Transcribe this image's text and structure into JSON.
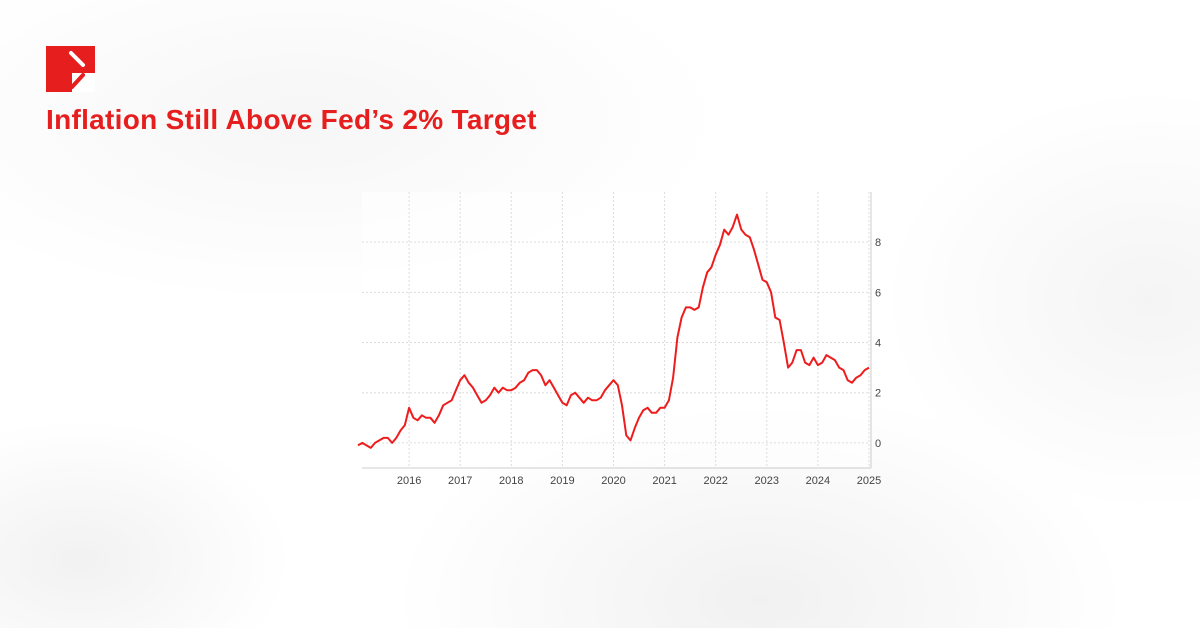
{
  "header": {
    "title": "Inflation Still Above Fed’s 2% Target",
    "logo_icon": "brand-logo-icon"
  },
  "colors": {
    "accent": "#e61e1e",
    "line": "#ee1c1c",
    "grid": "#dddddd"
  },
  "chart_data": {
    "type": "line",
    "title": "",
    "xlabel": "",
    "ylabel": "",
    "xlim": [
      2015,
      2025
    ],
    "ylim": [
      -1,
      10
    ],
    "x_ticks": [
      "2016",
      "2017",
      "2018",
      "2019",
      "2020",
      "2021",
      "2022",
      "2023",
      "2024",
      "2025"
    ],
    "y_ticks": [
      "0",
      "2",
      "4",
      "6",
      "8"
    ],
    "y_axis_side": "right",
    "grid": true,
    "x_start": "2015-01",
    "x_step": "monthly",
    "series": [
      {
        "values": [
          -0.1,
          0.0,
          -0.1,
          -0.2,
          0.0,
          0.1,
          0.2,
          0.2,
          0.0,
          0.2,
          0.5,
          0.7,
          1.4,
          1.0,
          0.9,
          1.1,
          1.0,
          1.0,
          0.8,
          1.1,
          1.5,
          1.6,
          1.7,
          2.1,
          2.5,
          2.7,
          2.4,
          2.2,
          1.9,
          1.6,
          1.7,
          1.9,
          2.2,
          2.0,
          2.2,
          2.1,
          2.1,
          2.2,
          2.4,
          2.5,
          2.8,
          2.9,
          2.9,
          2.7,
          2.3,
          2.5,
          2.2,
          1.9,
          1.6,
          1.5,
          1.9,
          2.0,
          1.8,
          1.6,
          1.8,
          1.7,
          1.7,
          1.8,
          2.1,
          2.3,
          2.5,
          2.3,
          1.5,
          0.3,
          0.1,
          0.6,
          1.0,
          1.3,
          1.4,
          1.2,
          1.2,
          1.4,
          1.4,
          1.7,
          2.6,
          4.2,
          5.0,
          5.4,
          5.4,
          5.3,
          5.4,
          6.2,
          6.8,
          7.0,
          7.5,
          7.9,
          8.5,
          8.3,
          8.6,
          9.1,
          8.5,
          8.3,
          8.2,
          7.7,
          7.1,
          6.5,
          6.4,
          6.0,
          5.0,
          4.9,
          4.0,
          3.0,
          3.2,
          3.7,
          3.7,
          3.2,
          3.1,
          3.4,
          3.1,
          3.2,
          3.5,
          3.4,
          3.3,
          3.0,
          2.9,
          2.5,
          2.4,
          2.6,
          2.7,
          2.9,
          3.0
        ]
      }
    ]
  }
}
